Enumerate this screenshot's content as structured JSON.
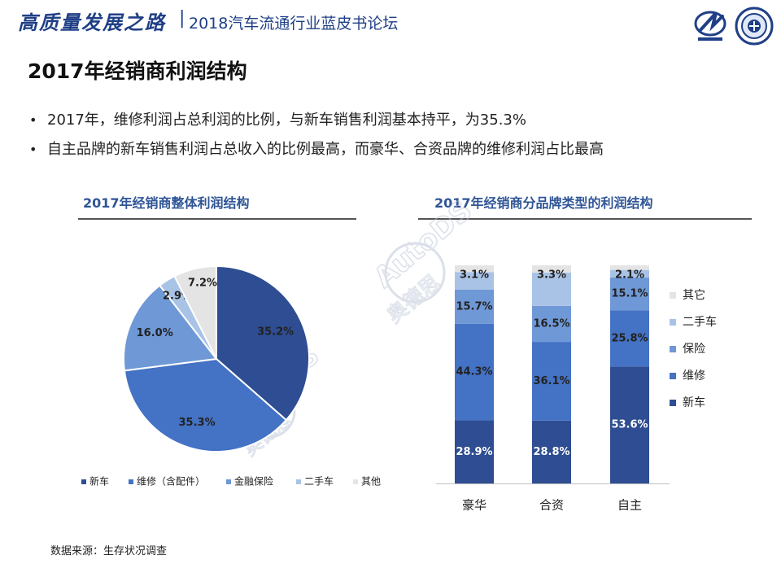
{
  "header": {
    "calligraphy_title": "高质量发展之路",
    "separator": "|",
    "forum_title": "2018汽车流通行业蓝皮书论坛"
  },
  "page_title": "2017年经销商利润结构",
  "bullets": [
    "2017年，维修利润占总利润的比例，与新车销售利润基本持平，为35.3%",
    "自主品牌的新车销售利润占总收入的比例最高，而豪华、合资品牌的维修利润占比最高"
  ],
  "source": "数据来源：生存状况调查",
  "watermark": {
    "text_en": "AutoDS",
    "text_cn": "奥德思"
  },
  "colors": {
    "c1": "#2e4d92",
    "c2": "#4472c4",
    "c3": "#6f98d6",
    "c4": "#a9c3e6",
    "c5": "#e4e4e4",
    "accent": "#2f5597"
  },
  "chart_data": [
    {
      "type": "pie",
      "title": "2017年经销商整体利润结构",
      "slices": [
        {
          "label": "新车",
          "value": 35.2,
          "display": "35.2%"
        },
        {
          "label": "维修（含配件）",
          "value": 35.3,
          "display": "35.3%"
        },
        {
          "label": "金融保险",
          "value": 16.0,
          "display": "16.0%"
        },
        {
          "label": "二手车",
          "value": 2.9,
          "display": "2.9%"
        },
        {
          "label": "其他",
          "value": 7.2,
          "display": "7.2%"
        }
      ],
      "legend_position": "bottom"
    },
    {
      "type": "bar",
      "stacked": true,
      "title": "2017年经销商分品牌类型的利润结构",
      "categories": [
        "豪华",
        "合资",
        "自主"
      ],
      "series": [
        {
          "name": "新车",
          "values": [
            28.9,
            28.8,
            53.6
          ],
          "labels": [
            "28.9%",
            "28.8%",
            "53.6%"
          ]
        },
        {
          "name": "维修",
          "values": [
            44.3,
            36.1,
            25.8
          ],
          "labels": [
            "44.3%",
            "36.1%",
            "25.8%"
          ]
        },
        {
          "name": "保险",
          "values": [
            15.7,
            16.5,
            15.1
          ],
          "labels": [
            "15.7%",
            "16.5%",
            "15.1%"
          ]
        },
        {
          "name": "二手车",
          "values": [
            8.0,
            15.3,
            3.4
          ],
          "labels": [
            "",
            "",
            ""
          ]
        },
        {
          "name": "其它",
          "values": [
            3.1,
            3.3,
            2.1
          ],
          "labels": [
            "3.1%",
            "3.3%",
            "2.1%"
          ]
        }
      ],
      "ylim": [
        0,
        100
      ],
      "legend_position": "right"
    }
  ]
}
